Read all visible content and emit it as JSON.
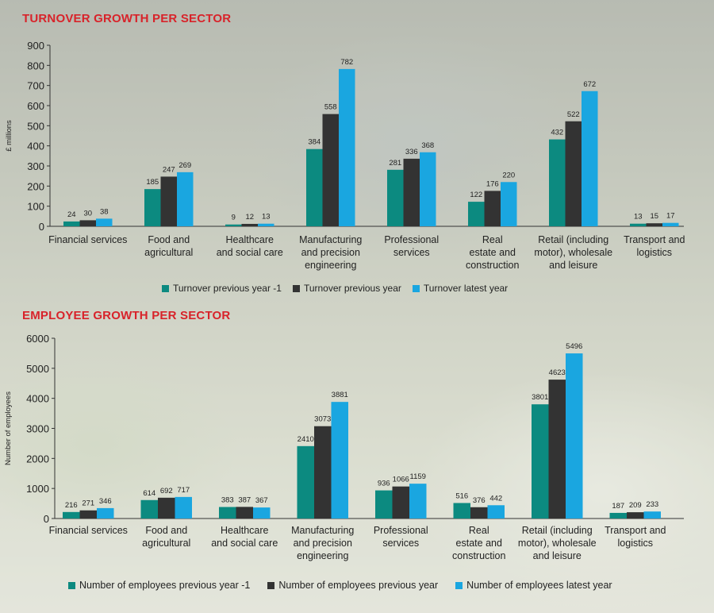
{
  "colors": {
    "series1": "#0c8a80",
    "series2": "#333333",
    "series3": "#1aa6e0",
    "title": "#d8232a"
  },
  "chart_data": [
    {
      "type": "bar",
      "title": "TURNOVER GROWTH PER SECTOR",
      "ylabel": "£ millions",
      "xlabel": "",
      "ylim": [
        0,
        900
      ],
      "yticks": [
        0,
        100,
        200,
        300,
        400,
        500,
        600,
        700,
        800,
        900
      ],
      "categories": [
        [
          "Financial services"
        ],
        [
          "Food and",
          "agricultural"
        ],
        [
          "Healthcare",
          "and social care"
        ],
        [
          "Manufacturing",
          "and precision",
          "engineering"
        ],
        [
          "Professional",
          "services"
        ],
        [
          "Real",
          "estate and",
          "construction"
        ],
        [
          "Retail (including",
          "motor), wholesale",
          "and leisure"
        ],
        [
          "Transport and",
          "logistics"
        ]
      ],
      "series": [
        {
          "name": "Turnover previous year -1",
          "values": [
            24,
            185,
            9,
            384,
            281,
            122,
            432,
            13
          ]
        },
        {
          "name": "Turnover previous year",
          "values": [
            30,
            247,
            12,
            558,
            336,
            176,
            522,
            15
          ]
        },
        {
          "name": "Turnover latest year",
          "values": [
            38,
            269,
            13,
            782,
            368,
            220,
            672,
            17
          ]
        }
      ],
      "grid": false,
      "legend": "bottom"
    },
    {
      "type": "bar",
      "title": "EMPLOYEE GROWTH PER SECTOR",
      "ylabel": "Number of employees",
      "xlabel": "",
      "ylim": [
        0,
        6000
      ],
      "yticks": [
        0,
        1000,
        2000,
        3000,
        4000,
        5000,
        6000
      ],
      "categories": [
        [
          "Financial services"
        ],
        [
          "Food and",
          "agricultural"
        ],
        [
          "Healthcare",
          "and social care"
        ],
        [
          "Manufacturing",
          "and precision",
          "engineering"
        ],
        [
          "Professional",
          "services"
        ],
        [
          "Real",
          "estate and",
          "construction"
        ],
        [
          "Retail (including",
          "motor), wholesale",
          "and leisure"
        ],
        [
          "Transport and",
          "logistics"
        ]
      ],
      "series": [
        {
          "name": "Number of employees previous year -1",
          "values": [
            216,
            614,
            383,
            2410,
            936,
            516,
            3801,
            187
          ]
        },
        {
          "name": "Number of employees previous year",
          "values": [
            271,
            692,
            387,
            3073,
            1066,
            376,
            4623,
            209
          ]
        },
        {
          "name": "Number of employees latest year",
          "values": [
            346,
            717,
            367,
            3881,
            1159,
            442,
            5496,
            233
          ]
        }
      ],
      "grid": false,
      "legend": "bottom"
    }
  ]
}
